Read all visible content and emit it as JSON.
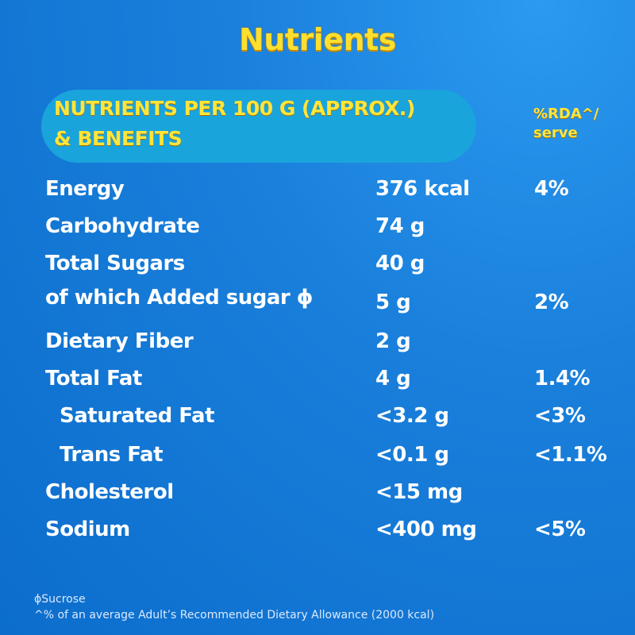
{
  "title": "Nutrients",
  "header": {
    "line1": "NUTRIENTS PER 100 G (APPROX.)",
    "line2": "& BENEFITS",
    "rda_line1": "%RDA^/",
    "rda_line2": "serve"
  },
  "rows": [
    {
      "label": "Energy",
      "value": "376 kcal",
      "rda": "4%"
    },
    {
      "label": "Carbohydrate",
      "value": "74 g",
      "rda": ""
    },
    {
      "label": "Total Sugars",
      "value": "40 g",
      "rda": ""
    },
    {
      "label": "of which Added sugar ϕ",
      "value": "5 g",
      "rda": "2%"
    },
    {
      "label": "Dietary Fiber",
      "value": "2 g",
      "rda": ""
    },
    {
      "label": "Total Fat",
      "value": "4 g",
      "rda": "1.4%"
    },
    {
      "label": "Saturated Fat",
      "value": "<3.2 g",
      "rda": "<3%"
    },
    {
      "label": "Trans Fat",
      "value": "<0.1 g",
      "rda": "<1.1%"
    },
    {
      "label": "Cholesterol",
      "value": "<15 mg",
      "rda": ""
    },
    {
      "label": "Sodium",
      "value": "<400 mg",
      "rda": "<5%"
    }
  ],
  "footnotes": [
    "ϕSucrose",
    "^% of an average Adult’s Recommended Dietary Allowance (2000 kcal)"
  ],
  "colors": {
    "accent": "#ffdf2e",
    "pill": "#1aa4dc",
    "background": "#1a80dc"
  }
}
